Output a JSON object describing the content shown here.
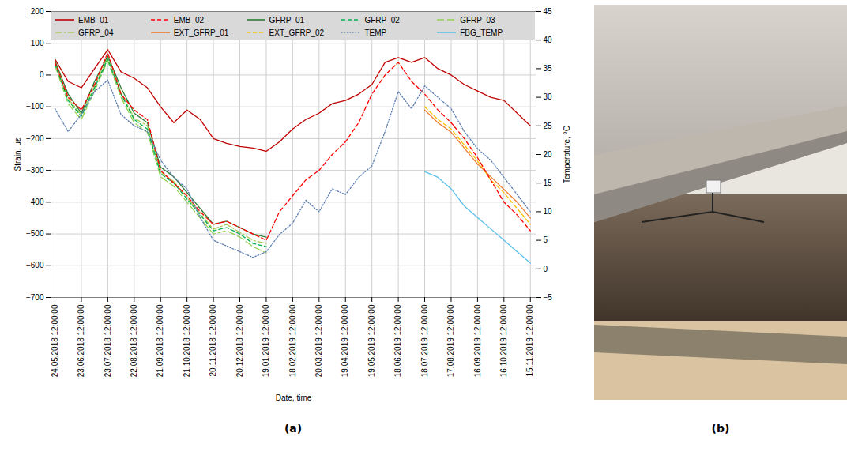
{
  "chart_data": {
    "type": "line",
    "x_label": "Date, time",
    "y_label": "Strain, με",
    "y2_label": "Temperature, °C",
    "xlim": [
      "2018-05-20T00:00:00",
      "2019-11-22T00:00:00"
    ],
    "xticks": [
      {
        "value": "2018-05-24T12:00:00",
        "label": "24.05.2018 12:00:00"
      },
      {
        "value": "2018-06-23T12:00:00",
        "label": "23.06.2018 12:00:00"
      },
      {
        "value": "2018-07-23T12:00:00",
        "label": "23.07.2018 12:00:00"
      },
      {
        "value": "2018-08-22T12:00:00",
        "label": "22.08.2018 12:00:00"
      },
      {
        "value": "2018-09-21T12:00:00",
        "label": "21.09.2018 12:00:00"
      },
      {
        "value": "2018-10-21T12:00:00",
        "label": "21.10.2018 12:00:00"
      },
      {
        "value": "2018-11-20T12:00:00",
        "label": "20.11.2018 12:00:00"
      },
      {
        "value": "2018-12-20T12:00:00",
        "label": "20.12.2018 12:00:00"
      },
      {
        "value": "2019-01-19T12:00:00",
        "label": "19.01.2019 12:00:00"
      },
      {
        "value": "2019-02-18T12:00:00",
        "label": "18.02.2019 12:00:00"
      },
      {
        "value": "2019-03-20T12:00:00",
        "label": "20.03.2019 12:00:00"
      },
      {
        "value": "2019-04-19T12:00:00",
        "label": "19.04.2019 12:00:00"
      },
      {
        "value": "2019-05-19T12:00:00",
        "label": "19.05.2019 12:00:00"
      },
      {
        "value": "2019-06-18T12:00:00",
        "label": "18.06.2019 12:00:00"
      },
      {
        "value": "2019-07-18T12:00:00",
        "label": "18.07.2019 12:00:00"
      },
      {
        "value": "2019-08-17T12:00:00",
        "label": "17.08.2019 12:00:00"
      },
      {
        "value": "2019-09-16T12:00:00",
        "label": "16.09.2019 12:00:00"
      },
      {
        "value": "2019-10-16T12:00:00",
        "label": "16.10.2019 12:00:00"
      },
      {
        "value": "2019-11-15T12:00:00",
        "label": "15.11.2019 12:00:00"
      }
    ],
    "ylim": [
      -700,
      200
    ],
    "yticks": [
      -700,
      -600,
      -500,
      -400,
      -300,
      -200,
      -100,
      0,
      100,
      200
    ],
    "y2lim": [
      -5,
      45
    ],
    "y2ticks": [
      -5,
      0,
      5,
      10,
      15,
      20,
      25,
      30,
      35,
      40,
      45
    ],
    "grid": true,
    "legend": "top",
    "x": [
      "2018-05-24T12:00:00",
      "2018-06-08T12:00:00",
      "2018-06-23T12:00:00",
      "2018-07-08T12:00:00",
      "2018-07-23T12:00:00",
      "2018-08-07T12:00:00",
      "2018-08-22T12:00:00",
      "2018-09-06T12:00:00",
      "2018-09-21T12:00:00",
      "2018-10-06T12:00:00",
      "2018-10-21T12:00:00",
      "2018-11-05T12:00:00",
      "2018-11-20T12:00:00",
      "2018-12-05T12:00:00",
      "2018-12-20T12:00:00",
      "2019-01-04T12:00:00",
      "2019-01-19T12:00:00",
      "2019-02-03T12:00:00",
      "2019-02-18T12:00:00",
      "2019-03-05T12:00:00",
      "2019-03-20T12:00:00",
      "2019-04-04T12:00:00",
      "2019-04-19T12:00:00",
      "2019-05-04T12:00:00",
      "2019-05-19T12:00:00",
      "2019-06-03T12:00:00",
      "2019-06-18T12:00:00",
      "2019-07-03T12:00:00",
      "2019-07-18T12:00:00",
      "2019-08-02T12:00:00",
      "2019-08-17T12:00:00",
      "2019-09-01T12:00:00",
      "2019-09-16T12:00:00",
      "2019-10-01T12:00:00",
      "2019-10-16T12:00:00",
      "2019-10-31T12:00:00",
      "2019-11-15T12:00:00"
    ],
    "series": [
      {
        "name": "EMB_01",
        "color": "#c00000",
        "line_style": "solid",
        "values": [
          50,
          -20,
          -40,
          20,
          80,
          10,
          -10,
          -40,
          -100,
          -150,
          -110,
          -140,
          -200,
          -215,
          -225,
          -230,
          -240,
          -210,
          -170,
          -140,
          -120,
          -90,
          -80,
          -60,
          -30,
          40,
          55,
          40,
          55,
          20,
          0,
          -30,
          -50,
          -70,
          -80,
          -120,
          -160
        ]
      },
      {
        "name": "EMB_02",
        "color": "#ff0000",
        "line_style": "dashed",
        "values": [
          40,
          -70,
          -110,
          -30,
          70,
          -60,
          -110,
          -140,
          -300,
          -340,
          -380,
          -430,
          -470,
          -460,
          -480,
          -500,
          -520,
          -430,
          -380,
          -330,
          -300,
          -250,
          -210,
          -150,
          -60,
          0,
          40,
          -20,
          -60,
          -110,
          -150,
          -200,
          -260,
          -330,
          -400,
          -440,
          -490
        ]
      },
      {
        "name": "GFRP_01",
        "color": "#2e7d32",
        "line_style": "solid",
        "values": [
          45,
          -60,
          -120,
          -20,
          60,
          -40,
          -120,
          -150,
          -290,
          -320,
          -370,
          -420,
          -470,
          -460,
          -480,
          -500,
          -510,
          null,
          null,
          null,
          null,
          null,
          null,
          null,
          null,
          null,
          null,
          null,
          null,
          null,
          null,
          null,
          null,
          null,
          null,
          null,
          null
        ]
      },
      {
        "name": "GFRP_02",
        "color": "#00b050",
        "line_style": "dashed",
        "values": [
          35,
          -80,
          -130,
          -40,
          50,
          -60,
          -140,
          -170,
          -310,
          -340,
          -390,
          -440,
          -490,
          -480,
          -500,
          -530,
          -540,
          null,
          null,
          null,
          null,
          null,
          null,
          null,
          null,
          null,
          null,
          null,
          null,
          null,
          null,
          null,
          null,
          null,
          null,
          null,
          null
        ]
      },
      {
        "name": "GFRP_03",
        "color": "#92d050",
        "line_style": "longdash",
        "values": [
          30,
          -90,
          -140,
          -50,
          45,
          -70,
          -150,
          -180,
          -320,
          -350,
          -400,
          -450,
          -500,
          -490,
          -510,
          -540,
          -560,
          null,
          null,
          null,
          null,
          null,
          null,
          null,
          null,
          null,
          null,
          null,
          null,
          null,
          null,
          null,
          null,
          null,
          null,
          null,
          null
        ]
      },
      {
        "name": "GFRP_04",
        "color": "#a9c84e",
        "line_style": "dashdot",
        "values": [
          38,
          -75,
          -125,
          -35,
          55,
          -55,
          -135,
          -160,
          -305,
          -335,
          -385,
          -435,
          -485,
          -470,
          -495,
          -520,
          -530,
          null,
          null,
          null,
          null,
          null,
          null,
          null,
          null,
          null,
          null,
          null,
          null,
          null,
          null,
          null,
          null,
          null,
          null,
          null,
          null
        ]
      },
      {
        "name": "EXT_GFRP_01",
        "color": "#ed7d31",
        "line_style": "solid",
        "values": [
          null,
          null,
          null,
          null,
          null,
          null,
          null,
          null,
          null,
          null,
          null,
          null,
          null,
          null,
          null,
          null,
          null,
          null,
          null,
          null,
          null,
          null,
          null,
          null,
          null,
          null,
          null,
          null,
          -110,
          -150,
          -180,
          -230,
          -280,
          -320,
          -360,
          -400,
          -450
        ]
      },
      {
        "name": "EXT_GFRP_02",
        "color": "#ffc000",
        "line_style": "dashed",
        "values": [
          null,
          null,
          null,
          null,
          null,
          null,
          null,
          null,
          null,
          null,
          null,
          null,
          null,
          null,
          null,
          null,
          null,
          null,
          null,
          null,
          null,
          null,
          null,
          null,
          null,
          null,
          null,
          null,
          -100,
          -140,
          -170,
          -220,
          -270,
          -330,
          -370,
          -420,
          -470
        ]
      },
      {
        "name": "TEMP",
        "color": "#5b7db1",
        "line_style": "dotted",
        "axis": "y2",
        "values": [
          28,
          24,
          27,
          31,
          33,
          27,
          25,
          24,
          19,
          16,
          14,
          9,
          5,
          4,
          3,
          2,
          3,
          6,
          8,
          12,
          10,
          14,
          13,
          16,
          18,
          24,
          31,
          28,
          32,
          30,
          28,
          24,
          21,
          19,
          16,
          13,
          10
        ]
      },
      {
        "name": "FBG_TEMP",
        "color": "#5bc0eb",
        "line_style": "solid",
        "axis": "y2",
        "values": [
          null,
          null,
          null,
          null,
          null,
          null,
          null,
          null,
          null,
          null,
          null,
          null,
          null,
          null,
          null,
          null,
          null,
          null,
          null,
          null,
          null,
          null,
          null,
          null,
          null,
          null,
          null,
          null,
          17,
          16,
          14,
          11,
          9,
          7,
          5,
          3,
          1
        ]
      }
    ]
  },
  "panel_labels": [
    "(a)",
    "(b)"
  ]
}
